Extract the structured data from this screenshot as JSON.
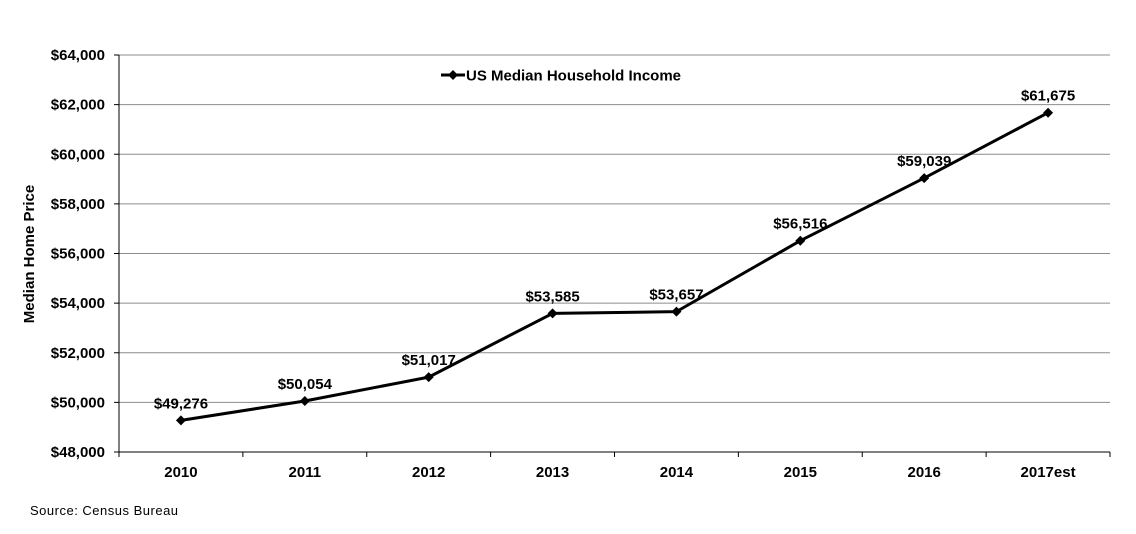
{
  "chart_data": {
    "type": "line",
    "categories": [
      "2010",
      "2011",
      "2012",
      "2013",
      "2014",
      "2015",
      "2016",
      "2017est"
    ],
    "series": [
      {
        "name": "US Median Household Income",
        "values": [
          49276,
          50054,
          51017,
          53585,
          53657,
          56516,
          59039,
          61675
        ],
        "labels": [
          "$49,276",
          "$50,054",
          "$51,017",
          "$53,585",
          "$53,657",
          "$56,516",
          "$59,039",
          "$61,675"
        ],
        "color": "#000000",
        "marker": "diamond"
      }
    ],
    "ylabel": "Median Home Price",
    "xlabel": "",
    "ylim": [
      48000,
      64000
    ],
    "yticks": [
      48000,
      50000,
      52000,
      54000,
      56000,
      58000,
      60000,
      62000,
      64000
    ],
    "ytick_labels": [
      "$48,000",
      "$50,000",
      "$52,000",
      "$54,000",
      "$56,000",
      "$58,000",
      "$60,000",
      "$62,000",
      "$64,000"
    ],
    "grid": "horizontal",
    "legend_position": "top-left"
  },
  "source": "Source: Census Bureau"
}
